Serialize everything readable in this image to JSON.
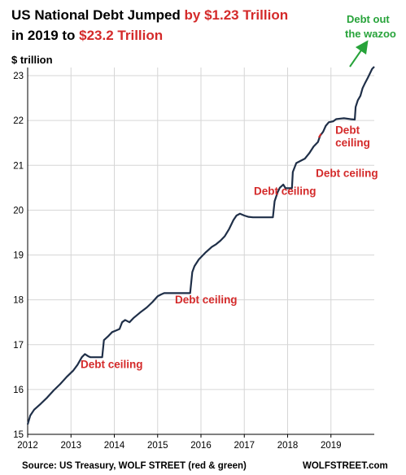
{
  "chart_data": {
    "type": "line",
    "title": {
      "line1_black": "US National Debt Jumped ",
      "line1_red": "by $1.23 Trillion",
      "line2_black": "in 2019 to ",
      "line2_red": "$23.2 Trillion"
    },
    "ylabel": "$ trillion",
    "ylim": [
      15,
      23.5
    ],
    "xlim": [
      2012,
      2020
    ],
    "y_ticks": [
      "15",
      "16",
      "17",
      "18",
      "19",
      "20",
      "21",
      "22",
      "23"
    ],
    "x_ticks": [
      "2012",
      "2013",
      "2014",
      "2015",
      "2016",
      "2017",
      "2018",
      "2019"
    ],
    "grid": true,
    "series": [
      {
        "points": [
          [
            2012.0,
            15.22
          ],
          [
            2012.06,
            15.42
          ],
          [
            2012.15,
            15.55
          ],
          [
            2012.3,
            15.68
          ],
          [
            2012.45,
            15.82
          ],
          [
            2012.6,
            15.98
          ],
          [
            2012.75,
            16.12
          ],
          [
            2012.9,
            16.28
          ],
          [
            2013.05,
            16.42
          ],
          [
            2013.15,
            16.55
          ],
          [
            2013.25,
            16.72
          ],
          [
            2013.32,
            16.79
          ],
          [
            2013.4,
            16.74
          ],
          [
            2013.45,
            16.72
          ],
          [
            2013.72,
            16.72
          ],
          [
            2013.76,
            17.1
          ],
          [
            2013.85,
            17.18
          ],
          [
            2013.95,
            17.28
          ],
          [
            2014.05,
            17.32
          ],
          [
            2014.12,
            17.35
          ],
          [
            2014.18,
            17.5
          ],
          [
            2014.25,
            17.55
          ],
          [
            2014.35,
            17.5
          ],
          [
            2014.45,
            17.6
          ],
          [
            2014.6,
            17.72
          ],
          [
            2014.75,
            17.83
          ],
          [
            2014.88,
            17.95
          ],
          [
            2015.0,
            18.08
          ],
          [
            2015.08,
            18.12
          ],
          [
            2015.15,
            18.15
          ],
          [
            2015.4,
            18.15
          ],
          [
            2015.75,
            18.15
          ],
          [
            2015.8,
            18.62
          ],
          [
            2015.85,
            18.75
          ],
          [
            2015.95,
            18.9
          ],
          [
            2016.1,
            19.05
          ],
          [
            2016.25,
            19.18
          ],
          [
            2016.35,
            19.24
          ],
          [
            2016.45,
            19.32
          ],
          [
            2016.55,
            19.42
          ],
          [
            2016.65,
            19.58
          ],
          [
            2016.75,
            19.78
          ],
          [
            2016.82,
            19.88
          ],
          [
            2016.9,
            19.92
          ],
          [
            2017.0,
            19.88
          ],
          [
            2017.1,
            19.85
          ],
          [
            2017.2,
            19.84
          ],
          [
            2017.4,
            19.84
          ],
          [
            2017.66,
            19.84
          ],
          [
            2017.7,
            20.2
          ],
          [
            2017.77,
            20.4
          ],
          [
            2017.82,
            20.5
          ],
          [
            2017.9,
            20.57
          ],
          [
            2017.95,
            20.49
          ],
          [
            2018.05,
            20.49
          ],
          [
            2018.1,
            20.49
          ],
          [
            2018.12,
            20.85
          ],
          [
            2018.2,
            21.05
          ],
          [
            2018.3,
            21.1
          ],
          [
            2018.4,
            21.15
          ],
          [
            2018.5,
            21.27
          ],
          [
            2018.6,
            21.42
          ],
          [
            2018.7,
            21.52
          ],
          [
            2018.75,
            21.66
          ],
          [
            2018.82,
            21.75
          ],
          [
            2018.88,
            21.88
          ],
          [
            2018.95,
            21.96
          ],
          [
            2019.05,
            21.98
          ],
          [
            2019.12,
            22.03
          ],
          [
            2019.2,
            22.04
          ],
          [
            2019.3,
            22.05
          ],
          [
            2019.45,
            22.03
          ],
          [
            2019.55,
            22.02
          ],
          [
            2019.57,
            22.3
          ],
          [
            2019.62,
            22.45
          ],
          [
            2019.68,
            22.55
          ],
          [
            2019.73,
            22.72
          ],
          [
            2019.78,
            22.82
          ],
          [
            2019.85,
            22.95
          ],
          [
            2019.9,
            23.05
          ],
          [
            2019.95,
            23.15
          ],
          [
            2020.0,
            23.2
          ]
        ],
        "color": "#1f2f48"
      }
    ],
    "annotations": [
      {
        "text": "Debt ceiling",
        "x": 2013.22,
        "y": 16.48,
        "color": "#d42a2a"
      },
      {
        "text": "Debt ceiling",
        "x": 2015.4,
        "y": 17.92,
        "color": "#d42a2a"
      },
      {
        "text": "Debt ceiling",
        "x": 2017.22,
        "y": 20.34,
        "color": "#d42a2a"
      },
      {
        "text": "Debt ceiling",
        "x": 2018.65,
        "y": 20.74,
        "color": "#d42a2a"
      },
      {
        "text": "Debt",
        "x": 2019.1,
        "y": 21.7,
        "color": "#d42a2a"
      },
      {
        "text": "ceiling",
        "x": 2019.1,
        "y": 21.42,
        "color": "#d42a2a"
      }
    ],
    "green_note": {
      "line1": "Debt out",
      "line2": "the wazoo",
      "color": "#27a33a"
    },
    "source": "Source: US Treasury, WOLF STREET (red & green)",
    "brand": "WOLFSTREET.com"
  }
}
